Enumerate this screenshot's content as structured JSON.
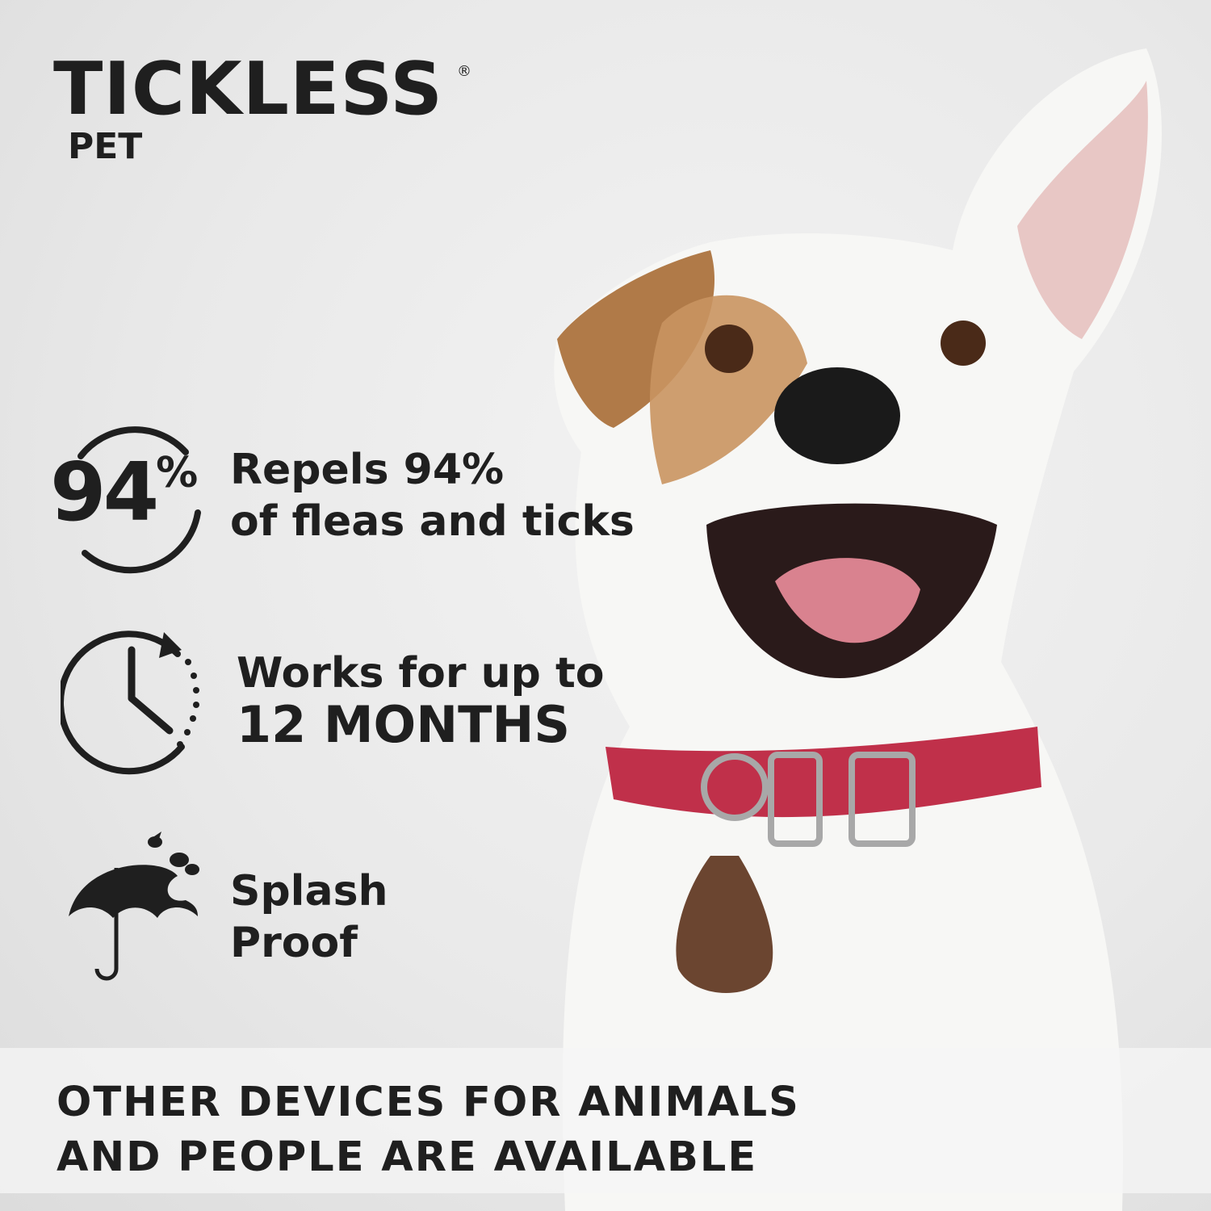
{
  "brand": {
    "name": "TICKLESS",
    "registered_mark": "®",
    "product_line": "PET"
  },
  "features": [
    {
      "icon": "percent-circle-icon",
      "badge": "94",
      "badge_symbol": "%",
      "line1": "Repels 94%",
      "line2": "of fleas and ticks"
    },
    {
      "icon": "clock-cycle-icon",
      "line1": "Works for up to",
      "line2": "12 MONTHS"
    },
    {
      "icon": "umbrella-rain-icon",
      "line1": "Splash",
      "line2": "Proof"
    }
  ],
  "footer": {
    "line1": "OTHER DEVICES FOR ANIMALS",
    "line2": "AND PEOPLE ARE AVAILABLE"
  },
  "colors": {
    "text": "#1f1f1f",
    "collar": "#c0304a",
    "device": "#6b4530",
    "background": "#e9e9e9"
  }
}
